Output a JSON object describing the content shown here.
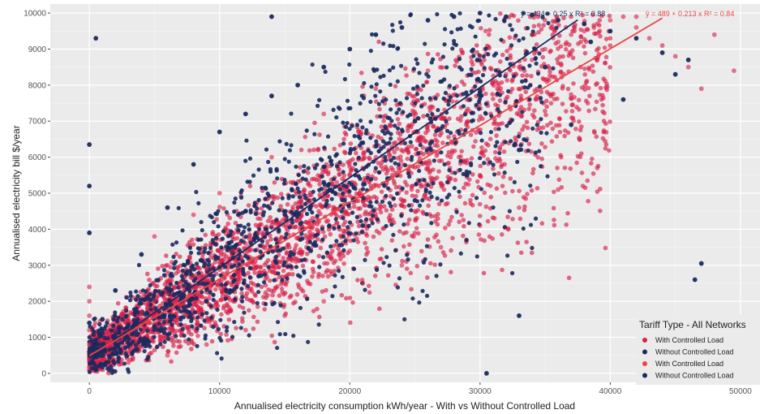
{
  "chart_data": {
    "type": "scatter",
    "title": "",
    "xlabel": "Annualised electricity consumption kWh/year - With vs Without Controlled Load",
    "ylabel": "Annualised electricity bill $/year",
    "xlim": [
      -3000,
      51500
    ],
    "ylim": [
      -250,
      10250
    ],
    "x_ticks": [
      0,
      10000,
      20000,
      30000,
      40000,
      50000
    ],
    "y_ticks": [
      0,
      1000,
      2000,
      3000,
      4000,
      5000,
      6000,
      7000,
      8000,
      9000,
      10000
    ],
    "grid": true,
    "legend": {
      "title": "Tariff Type - All Networks",
      "position": "bottom-right",
      "entries": [
        {
          "label": "With Controlled Load",
          "color": "#d91e48"
        },
        {
          "label": "Without Controlled Load",
          "color": "#1b2a5e"
        },
        {
          "label": "With Controlled Load",
          "color": "#ee4444"
        },
        {
          "label": "Without Controlled Load",
          "color": "#1b2a5e"
        }
      ]
    },
    "series": [
      {
        "name": "With Controlled Load",
        "color": "#d91e48",
        "points_x": [
          0,
          0,
          0,
          0,
          0,
          0,
          800,
          1500,
          2000,
          3000,
          4000,
          5000,
          6000,
          7000,
          8000,
          9000,
          10000,
          11000,
          12000,
          13000,
          14000,
          15000,
          16000,
          17000,
          18000,
          19000,
          20000,
          21000,
          22000,
          23000,
          24000,
          25000,
          26000,
          27000,
          28000,
          29000,
          30000,
          31000,
          32000,
          33000,
          34000,
          35000,
          36000,
          37000,
          38000,
          39000,
          40000,
          41000,
          42000,
          43000,
          44000,
          45000,
          46000,
          47000,
          48000,
          49500,
          3000,
          6000,
          9000,
          12000,
          15000,
          18000,
          21000,
          24000,
          27000,
          30000,
          33000,
          36000,
          39000,
          10000,
          14000,
          18000,
          22000,
          26000,
          30000,
          34000,
          38000,
          42000,
          15000,
          20000,
          25000,
          5000,
          8000
        ],
        "points_y": [
          400,
          800,
          1200,
          1600,
          2000,
          2400,
          900,
          1100,
          1200,
          1500,
          1700,
          2000,
          2200,
          2400,
          2700,
          2900,
          3100,
          3400,
          3600,
          3900,
          4100,
          4300,
          4600,
          4800,
          5000,
          5300,
          5500,
          5700,
          6000,
          6200,
          6400,
          6700,
          6900,
          7100,
          7400,
          7600,
          7800,
          8100,
          8300,
          8500,
          8700,
          9000,
          9200,
          9400,
          9500,
          9700,
          9800,
          9900,
          9600,
          9300,
          9100,
          8800,
          8500,
          7900,
          9400,
          8400,
          300,
          500,
          800,
          1200,
          1600,
          2000,
          2500,
          3000,
          3500,
          4100,
          4600,
          5100,
          5700,
          5000,
          6000,
          7200,
          7900,
          8400,
          8800,
          9400,
          9700,
          9900,
          2500,
          3400,
          4500,
          3800,
          4400
        ]
      },
      {
        "name": "Without Controlled Load",
        "color": "#1b2a5e",
        "points_x": [
          0,
          0,
          0,
          0,
          0,
          500,
          1000,
          2000,
          4000,
          6000,
          8000,
          10000,
          12000,
          14000,
          16000,
          18000,
          20000,
          22000,
          24000,
          26000,
          28000,
          30000,
          32000,
          34000,
          36000,
          38000,
          40000,
          42000,
          44000,
          2000,
          5000,
          9000,
          13000,
          17000,
          21000,
          25000,
          29000,
          33000,
          37000,
          41000,
          45000,
          46000,
          14000,
          12000,
          18000,
          21000,
          25000,
          30000,
          35000,
          38500,
          30500,
          33000,
          47000,
          46500
        ],
        "points_y": [
          600,
          1400,
          3900,
          5200,
          6350,
          9300,
          1500,
          2300,
          3300,
          4600,
          5800,
          6700,
          7200,
          7700,
          8000,
          8500,
          9000,
          9400,
          9600,
          9800,
          9900,
          10000,
          9900,
          9950,
          9800,
          9700,
          9500,
          9300,
          8900,
          800,
          1300,
          2000,
          2700,
          3400,
          4100,
          4800,
          5500,
          6200,
          6900,
          7600,
          8300,
          8700,
          9900,
          4500,
          5300,
          6400,
          7000,
          7800,
          8500,
          9200,
          0,
          1600,
          3050,
          2600
        ]
      }
    ],
    "trend_lines": [
      {
        "series": "Without Controlled Load",
        "color": "#1b2a5e",
        "intercept": 434,
        "slope": 0.25,
        "x_range": [
          0,
          37500
        ],
        "label": "ŷ = 434 + 0.25 x   R² = 0.88"
      },
      {
        "series": "With Controlled Load",
        "color": "#ee4444",
        "intercept": 489,
        "slope": 0.213,
        "x_range": [
          0,
          44000
        ],
        "label": "ŷ = 489 + 0.213 x   R² = 0.84"
      }
    ]
  }
}
